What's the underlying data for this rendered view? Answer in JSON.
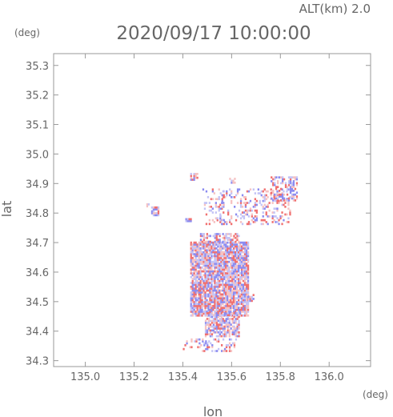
{
  "chart_data": {
    "type": "heatmap",
    "title": "2020/09/17 10:00:00",
    "subtitle": "ALT(km) 2.0",
    "xlabel": "lon",
    "ylabel": "lat",
    "xunit": "(deg)",
    "yunit": "(deg)",
    "xlim": [
      134.87,
      136.17
    ],
    "ylim": [
      34.28,
      35.34
    ],
    "xticks": [
      135.0,
      135.2,
      135.4,
      135.6,
      135.8,
      136.0
    ],
    "yticks": [
      34.3,
      34.4,
      34.5,
      34.6,
      34.7,
      34.8,
      34.9,
      35.0,
      35.1,
      35.2,
      35.3
    ],
    "xtick_labels": [
      "135.0",
      "135.2",
      "135.4",
      "135.6",
      "135.8",
      "136.0"
    ],
    "ytick_labels": [
      "34.3",
      "34.4",
      "34.5",
      "34.6",
      "34.7",
      "34.8",
      "34.9",
      "35.0",
      "35.1",
      "35.2",
      "35.3"
    ],
    "grid": false,
    "colors": {
      "positive": "#f07070",
      "negative": "#8c8cf0",
      "weak_positive": "#f6c2c2",
      "weak_negative": "#c4c4f6"
    },
    "regions": [
      {
        "lon": [
          135.43,
          135.67
        ],
        "lat": [
          34.45,
          34.7
        ],
        "density": 0.88
      },
      {
        "lon": [
          135.49,
          135.63
        ],
        "lat": [
          34.38,
          34.46
        ],
        "density": 0.75
      },
      {
        "lon": [
          135.47,
          135.63
        ],
        "lat": [
          34.7,
          34.73
        ],
        "density": 0.6
      },
      {
        "lon": [
          135.55,
          135.84
        ],
        "lat": [
          34.76,
          34.88
        ],
        "density": 0.28
      },
      {
        "lon": [
          135.76,
          135.87
        ],
        "lat": [
          34.84,
          34.92
        ],
        "density": 0.45
      },
      {
        "lon": [
          135.48,
          135.57
        ],
        "lat": [
          34.76,
          34.88
        ],
        "density": 0.22
      },
      {
        "lon": [
          135.27,
          135.3
        ],
        "lat": [
          34.79,
          34.82
        ],
        "density": 0.9
      },
      {
        "lon": [
          135.25,
          135.26
        ],
        "lat": [
          34.82,
          34.83
        ],
        "density": 0.9
      },
      {
        "lon": [
          135.41,
          135.43
        ],
        "lat": [
          34.77,
          34.78
        ],
        "density": 0.9
      },
      {
        "lon": [
          135.43,
          135.46
        ],
        "lat": [
          34.91,
          34.93
        ],
        "density": 0.6
      },
      {
        "lon": [
          135.59,
          135.61
        ],
        "lat": [
          34.9,
          34.92
        ],
        "density": 0.7
      },
      {
        "lon": [
          135.4,
          135.62
        ],
        "lat": [
          34.33,
          34.37
        ],
        "density": 0.25
      },
      {
        "lon": [
          135.66,
          135.69
        ],
        "lat": [
          34.5,
          34.52
        ],
        "density": 0.8
      }
    ]
  }
}
